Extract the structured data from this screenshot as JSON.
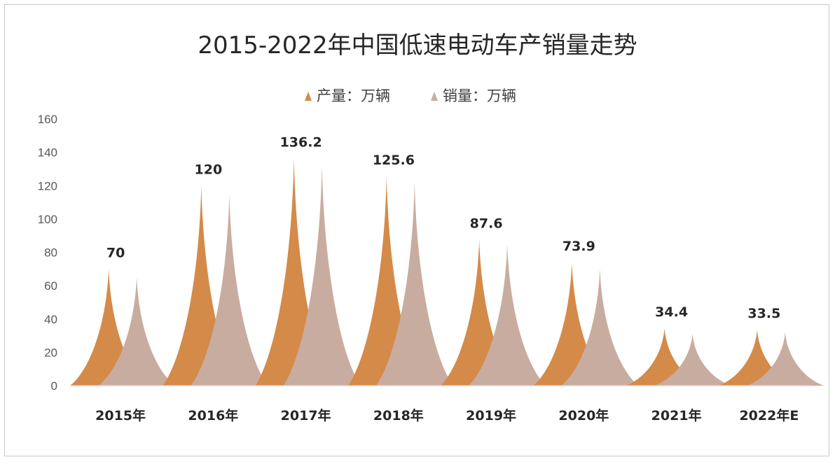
{
  "chart_data": {
    "type": "bar",
    "subtype": "cone-peak",
    "title": "2015-2022年中国低速电动车产销量走势",
    "categories": [
      "2015年",
      "2016年",
      "2017年",
      "2018年",
      "2019年",
      "2020年",
      "2021年",
      "2022年E"
    ],
    "series": [
      {
        "name": "产量：万辆",
        "color": "#D48A48",
        "values": [
          70,
          120,
          136.2,
          125.6,
          87.6,
          73.9,
          34.4,
          33.5
        ]
      },
      {
        "name": "销量：万辆",
        "color": "#C9ACA0",
        "values": [
          65,
          115,
          132,
          122,
          85,
          70,
          31,
          32
        ]
      }
    ],
    "data_labels": [
      "70",
      "120",
      "136.2",
      "125.6",
      "87.6",
      "73.9",
      "34.4",
      "33.5"
    ],
    "ylim": [
      0,
      160
    ],
    "yticks": [
      "0",
      "20",
      "40",
      "60",
      "80",
      "100",
      "120",
      "140",
      "160"
    ],
    "xlabel": "",
    "ylabel": "",
    "legend": "top",
    "grid": false
  }
}
